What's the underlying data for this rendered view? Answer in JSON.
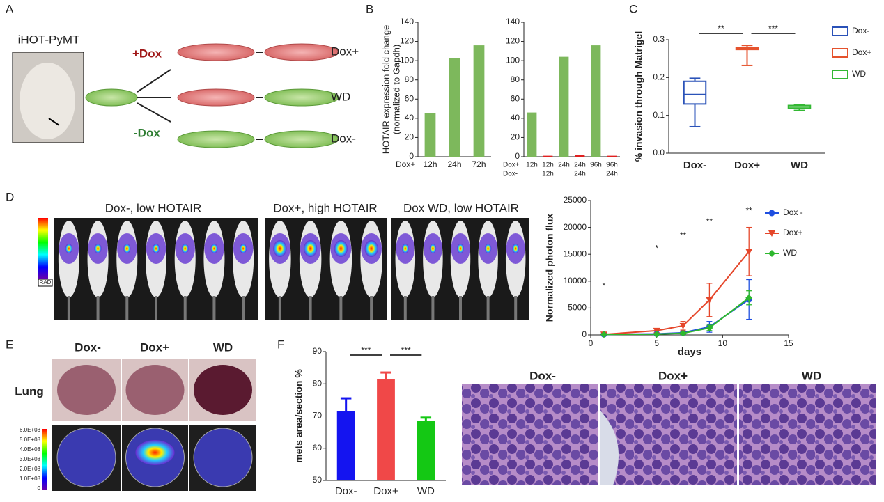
{
  "panel_labels": [
    "A",
    "B",
    "C",
    "D",
    "E",
    "F"
  ],
  "panel_a": {
    "model": "iHOT-PyMT",
    "arms": [
      "+Dox",
      "-Dox"
    ],
    "outcomes": [
      "Dox+",
      "WD",
      "Dox-"
    ]
  },
  "panel_d": {
    "image_labels": [
      "Dox-, low HOTAIR",
      "Dox+, high HOTAIR",
      "Dox WD, low HOTAIR"
    ],
    "scale_label": "RAD"
  },
  "panel_e": {
    "columns": [
      "Dox-",
      "Dox+",
      "WD"
    ],
    "row_label": "Lung",
    "scale_ticks": [
      "6.0E+08",
      "5.0E+08",
      "4.0E+08",
      "3.0E+08",
      "2.0E+08",
      "1.0E+08",
      "0"
    ]
  },
  "panel_f_images": {
    "columns": [
      "Dox-",
      "Dox+",
      "WD"
    ]
  },
  "chart_data": [
    {
      "type": "bar",
      "y_label": [
        "HOTAIR expression fold change",
        "(normalized to Gapdh)"
      ],
      "category_rows": {
        "names": [
          "Dox+"
        ],
        "labels": [
          [
            "12h",
            "24h",
            "72h"
          ]
        ]
      },
      "values": [
        45,
        103,
        116
      ],
      "colors": [
        "#7db85c",
        "#7db85c",
        "#7db85c"
      ],
      "ylim": [
        0,
        140
      ],
      "yticks": [
        0,
        20,
        40,
        60,
        80,
        100,
        120,
        140
      ]
    },
    {
      "type": "bar",
      "category_rows": {
        "names": [
          "Dox+",
          "Dox-"
        ],
        "labels": [
          [
            "12h",
            "12h",
            "24h",
            "24h",
            "96h",
            "96h"
          ],
          [
            null,
            "12h",
            null,
            "24h",
            null,
            "24h"
          ]
        ]
      },
      "values": [
        46,
        1,
        104,
        2,
        116,
        1
      ],
      "colors": [
        "#7db85c",
        "#e02020",
        "#7db85c",
        "#e02020",
        "#7db85c",
        "#e02020"
      ],
      "ylim": [
        0,
        140
      ],
      "yticks": [
        0,
        20,
        40,
        60,
        80,
        100,
        120,
        140
      ]
    },
    {
      "type": "box",
      "y_label": "% invasion through Matrigel",
      "categories": [
        "Dox-",
        "Dox+",
        "WD"
      ],
      "boxes": [
        {
          "min": 0.07,
          "q1": 0.13,
          "median": 0.155,
          "q3": 0.19,
          "max": 0.198
        },
        {
          "min": 0.232,
          "q1": 0.274,
          "median": 0.276,
          "q3": 0.279,
          "max": 0.285
        },
        {
          "min": 0.113,
          "q1": 0.118,
          "median": 0.122,
          "q3": 0.126,
          "max": 0.128
        }
      ],
      "colors": [
        "#2a52b8",
        "#e5522d",
        "#33b833"
      ],
      "significance": [
        "**",
        "***"
      ],
      "legend": true,
      "ylim": [
        0,
        0.3
      ],
      "yticks": [
        {
          "value": 0,
          "label": "0.0"
        },
        0.1,
        0.2,
        0.3
      ]
    },
    {
      "type": "line",
      "x_label": "days",
      "y_label": "Normalized photon flux",
      "xlim": [
        0,
        15
      ],
      "xticks": [
        0,
        5,
        10,
        15
      ],
      "ylim": [
        0,
        25000
      ],
      "yticks": [
        0,
        5000,
        10000,
        15000,
        20000,
        25000
      ],
      "series": [
        {
          "name": "Dox -",
          "color": "#1f4fe0",
          "marker": "circle",
          "x": [
            1,
            5,
            7,
            9,
            12
          ],
          "values": [
            100,
            200,
            400,
            1500,
            6600
          ],
          "errors": [
            50,
            100,
            200,
            1000,
            3700
          ]
        },
        {
          "name": "Dox+",
          "color": "#e5462a",
          "marker": "triangle",
          "x": [
            1,
            5,
            7,
            9,
            12
          ],
          "values": [
            100,
            800,
            1700,
            6500,
            15500
          ],
          "errors": [
            50,
            400,
            800,
            3100,
            4500
          ]
        },
        {
          "name": "WD",
          "color": "#2eb82e",
          "marker": "diamond",
          "x": [
            1,
            5,
            7,
            9,
            12
          ],
          "values": [
            100,
            150,
            300,
            1300,
            6900
          ],
          "errors": [
            50,
            80,
            150,
            500,
            1300
          ]
        }
      ],
      "significance": {
        "x": [
          1,
          5,
          7,
          9,
          12
        ],
        "y": [
          9000,
          16000,
          18400,
          21000,
          23000
        ],
        "labels": [
          "*",
          "*",
          "**",
          "**",
          "**"
        ]
      }
    },
    {
      "type": "bar",
      "y_label": "mets area/section %",
      "categories": [
        "Dox-",
        "Dox+",
        "WD"
      ],
      "values": [
        71.5,
        81.5,
        68.5
      ],
      "errors": [
        4,
        2,
        1
      ],
      "colors": [
        "#1414f0",
        "#f04848",
        "#14c814"
      ],
      "significance": [
        "***",
        "***"
      ],
      "ylim": [
        50,
        90
      ],
      "yticks": [
        50,
        60,
        70,
        80,
        90
      ]
    }
  ]
}
